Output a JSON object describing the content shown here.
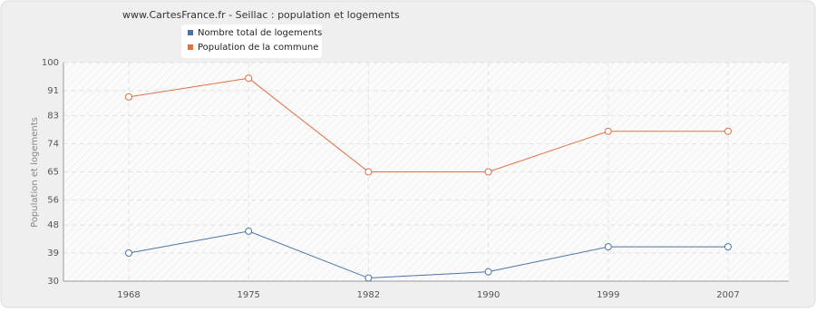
{
  "chart_data": {
    "type": "line",
    "title": "www.CartesFrance.fr - Seillac : population et logements",
    "y_label": "Population et logements",
    "categories": [
      "1968",
      "1975",
      "1982",
      "1990",
      "1999",
      "2007"
    ],
    "series": [
      {
        "name": "Nombre total de logements",
        "color": "#4a74a6",
        "values": [
          39,
          46,
          31,
          33,
          41,
          41
        ]
      },
      {
        "name": "Population de la commune",
        "color": "#e0703f",
        "values": [
          89,
          95,
          65,
          65,
          78,
          78
        ]
      }
    ],
    "ylim": [
      30,
      100
    ],
    "yticks": [
      30,
      39,
      48,
      56,
      65,
      74,
      83,
      91,
      100
    ],
    "grid": true
  }
}
